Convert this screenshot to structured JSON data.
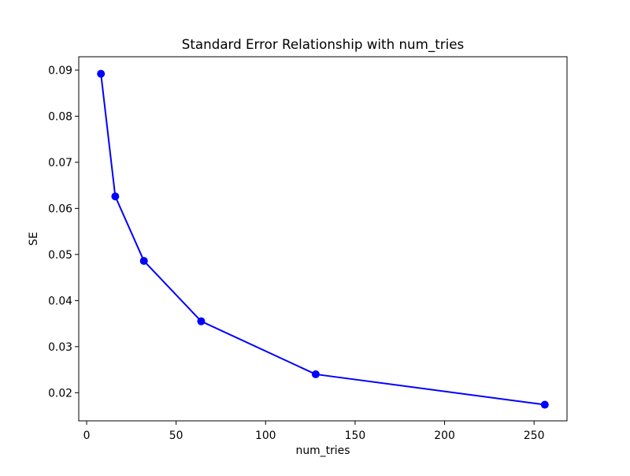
{
  "chart_data": {
    "type": "line",
    "title": "Standard Error Relationship with num_tries",
    "xlabel": "num_tries",
    "ylabel": "SE",
    "x": [
      8,
      16,
      32,
      64,
      128,
      256
    ],
    "y": [
      0.0892,
      0.0626,
      0.0486,
      0.0355,
      0.024,
      0.0174
    ],
    "xlim": [
      -4.4,
      268.4
    ],
    "ylim": [
      0.0139,
      0.0929
    ],
    "xticks": [
      0,
      50,
      100,
      150,
      200,
      250
    ],
    "yticks": [
      0.02,
      0.03,
      0.04,
      0.05,
      0.06,
      0.07,
      0.08,
      0.09
    ],
    "ytick_decimals": 2,
    "grid": false,
    "legend": false,
    "line_color": "#0000ff",
    "marker": "circle",
    "marker_color": "#0000ff",
    "background_color": "#ffffff",
    "spine_color": "#000000"
  }
}
